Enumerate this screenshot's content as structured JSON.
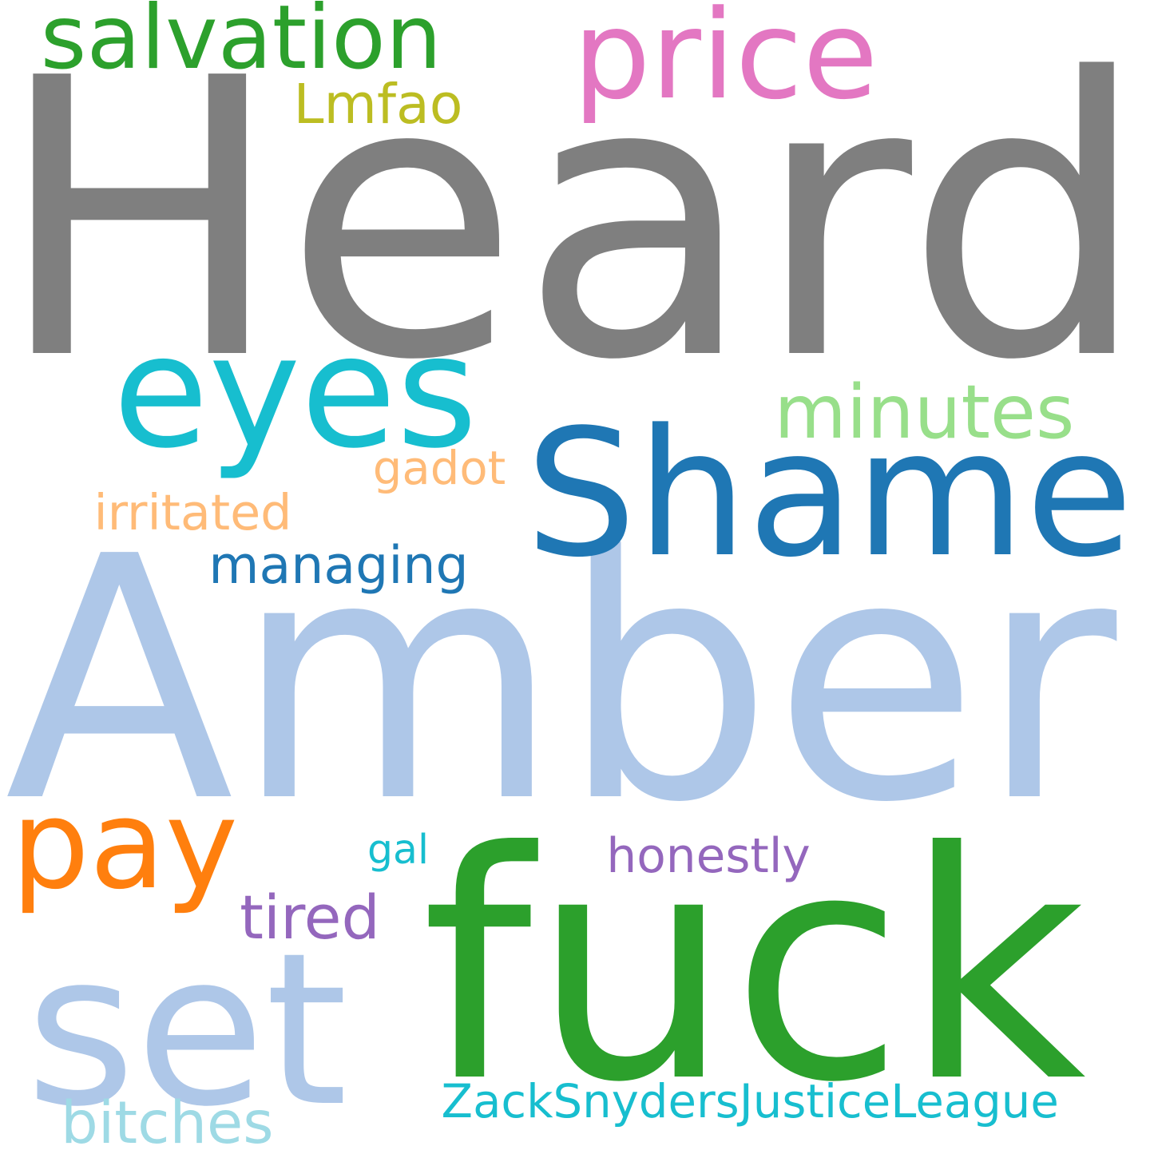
{
  "words": [
    {
      "text": "Heard",
      "color": "#7f7f7f"
    },
    {
      "text": "Amber",
      "color": "#aec7e8"
    },
    {
      "text": "fuck",
      "color": "#2ca02c"
    },
    {
      "text": "Shame",
      "color": "#1f77b4"
    },
    {
      "text": "set",
      "color": "#aec7e8"
    },
    {
      "text": "eyes",
      "color": "#17becf"
    },
    {
      "text": "price",
      "color": "#e377c2"
    },
    {
      "text": "pay",
      "color": "#ff7f0e"
    },
    {
      "text": "salvation",
      "color": "#2ca02c"
    },
    {
      "text": "minutes",
      "color": "#98df8a"
    },
    {
      "text": "managing",
      "color": "#1f77b4"
    },
    {
      "text": "irritated",
      "color": "#ffbb78"
    },
    {
      "text": "gadot",
      "color": "#ffbb78"
    },
    {
      "text": "honestly",
      "color": "#9467bd"
    },
    {
      "text": "ZackSnydersJusticeLeague",
      "color": "#17becf"
    },
    {
      "text": "tired",
      "color": "#9467bd"
    },
    {
      "text": "gal",
      "color": "#17becf"
    },
    {
      "text": "bitches",
      "color": "#9edae5"
    },
    {
      "text": "Lmfao",
      "color": "#bcbd22"
    }
  ]
}
